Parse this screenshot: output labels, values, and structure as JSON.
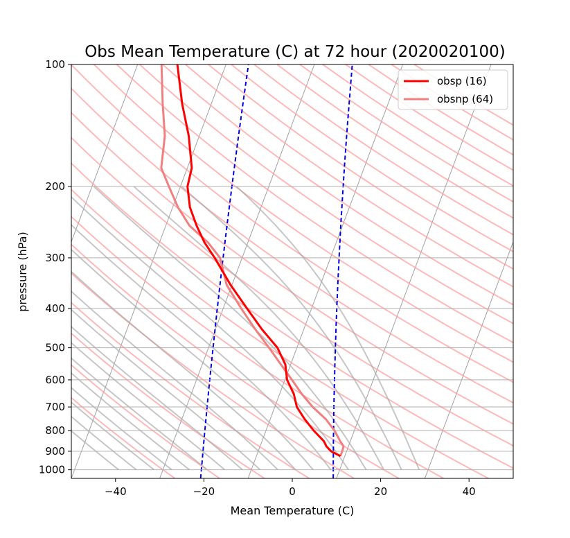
{
  "chart_data": {
    "type": "line",
    "title": "Obs Mean Temperature (C) at 72 hour (2020020100)",
    "xlabel": "Mean Temperature (C)",
    "ylabel": "pressure (hPa)",
    "xlim": [
      -50,
      50
    ],
    "ylim": [
      1050,
      100
    ],
    "y_scale": "log",
    "x_ticks": [
      -40,
      -20,
      0,
      20,
      40
    ],
    "x_tick_labels": [
      "−40",
      "−20",
      "0",
      "20",
      "40"
    ],
    "y_ticks": [
      1000,
      900,
      800,
      700,
      600,
      500,
      400,
      300,
      200,
      100
    ],
    "y_tick_labels": [
      "1000",
      "900",
      "800",
      "700",
      "600",
      "500",
      "400",
      "300",
      "200",
      "100"
    ],
    "grid": true,
    "legend": "top-right",
    "series": [
      {
        "name": "obsp (16)",
        "color": "#ff0000",
        "pressure": [
          925,
          900,
          875,
          850,
          800,
          750,
          700,
          650,
          600,
          550,
          500,
          450,
          400,
          350,
          300,
          275,
          250,
          225,
          200,
          180,
          150,
          125,
          100
        ],
        "temperature": [
          9.0,
          6.5,
          5.0,
          4.0,
          0.8,
          -2.2,
          -5.0,
          -6.8,
          -9.5,
          -11.2,
          -14.4,
          -19.5,
          -24.6,
          -30.3,
          -36.2,
          -39.8,
          -43.0,
          -46.1,
          -48.4,
          -49.0,
          -52.4,
          -56.6,
          -61.0
        ]
      },
      {
        "name": "obsnp (64)",
        "color": "#f08080",
        "pressure": [
          925,
          900,
          875,
          850,
          800,
          750,
          700,
          650,
          600,
          550,
          500,
          450,
          400,
          350,
          300,
          275,
          250,
          225,
          200,
          180,
          150,
          125,
          100
        ],
        "temperature": [
          9.0,
          9.0,
          8.9,
          7.7,
          5.5,
          2.6,
          -1.4,
          -5.0,
          -8.4,
          -12.2,
          -16.3,
          -21.0,
          -25.9,
          -31.2,
          -35.0,
          -39.0,
          -44.6,
          -48.8,
          -52.6,
          -55.9,
          -57.8,
          -61.0,
          -64.6
        ]
      }
    ],
    "background_lines": {
      "isotherm_color": "#a0a0a0",
      "dry_adiabat_color": "#ff9a9a",
      "moist_adiabat_color": "#a8a8a8",
      "mixing_ratio_color": "#0000dd"
    }
  }
}
